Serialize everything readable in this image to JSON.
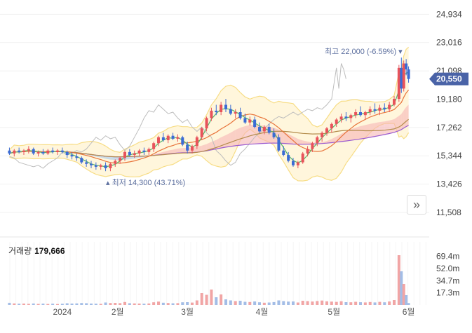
{
  "chart_data": {
    "type": "candlestick",
    "title": "",
    "price_axis": {
      "ticks": [
        "24,934",
        "23,016",
        "21,098",
        "19,180",
        "17,262",
        "15,344",
        "13,426",
        "11,508"
      ],
      "ylim": [
        10700,
        25900
      ]
    },
    "x_labels": [
      {
        "label": "2024",
        "day": 8
      },
      {
        "label": "2월",
        "day": 31
      },
      {
        "label": "3월",
        "day": 60
      },
      {
        "label": "4월",
        "day": 91
      },
      {
        "label": "5월",
        "day": 121
      },
      {
        "label": "6월",
        "day": 152
      }
    ],
    "day_range": [
      -15,
      160
    ],
    "current_price": {
      "label": "20,550",
      "value": 20550
    },
    "high_note": {
      "label": "최고",
      "value": "22,000 (-6.59%)",
      "day": 150,
      "price": 22000
    },
    "low_note": {
      "label": "최저",
      "value": "14,300 (43.71%)",
      "day": 27,
      "price": 14300
    },
    "candles": [
      [
        -14,
        15700,
        15900,
        15400,
        15500
      ],
      [
        -12,
        15500,
        15800,
        15300,
        15700
      ],
      [
        -10,
        15700,
        15900,
        15500,
        15600
      ],
      [
        -8,
        15600,
        15800,
        15400,
        15700
      ],
      [
        -6,
        15700,
        16000,
        15500,
        15800
      ],
      [
        -4,
        15800,
        15900,
        15400,
        15500
      ],
      [
        -2,
        15500,
        15700,
        15300,
        15600
      ],
      [
        0,
        15600,
        15800,
        15400,
        15500
      ],
      [
        2,
        15500,
        15800,
        15400,
        15700
      ],
      [
        4,
        15700,
        15900,
        15500,
        15600
      ],
      [
        6,
        15600,
        15800,
        15400,
        15700
      ],
      [
        8,
        15700,
        15900,
        15500,
        15600
      ],
      [
        10,
        15600,
        15700,
        15200,
        15400
      ],
      [
        12,
        15400,
        15600,
        15100,
        15300
      ],
      [
        14,
        15300,
        15500,
        15000,
        15200
      ],
      [
        16,
        15200,
        15300,
        14800,
        14900
      ],
      [
        18,
        14900,
        15100,
        14600,
        14800
      ],
      [
        20,
        14800,
        15000,
        14500,
        14700
      ],
      [
        22,
        14700,
        14900,
        14400,
        14600
      ],
      [
        24,
        14600,
        14800,
        14400,
        14700
      ],
      [
        26,
        14700,
        14900,
        14300,
        14500
      ],
      [
        28,
        14500,
        14900,
        14300,
        14800
      ],
      [
        30,
        14800,
        15100,
        14600,
        15000
      ],
      [
        32,
        15000,
        15300,
        14800,
        15200
      ],
      [
        34,
        15200,
        15700,
        15000,
        15600
      ],
      [
        36,
        15600,
        15800,
        15300,
        15400
      ],
      [
        38,
        15400,
        15700,
        15200,
        15500
      ],
      [
        40,
        15500,
        15800,
        15300,
        15700
      ],
      [
        42,
        15700,
        15900,
        15400,
        15600
      ],
      [
        44,
        15600,
        15900,
        15400,
        15800
      ],
      [
        46,
        15800,
        16300,
        15600,
        16200
      ],
      [
        48,
        16200,
        16700,
        16000,
        16600
      ],
      [
        50,
        16600,
        16900,
        16300,
        16400
      ],
      [
        52,
        16400,
        16800,
        16200,
        16700
      ],
      [
        54,
        16700,
        16900,
        16400,
        16500
      ],
      [
        56,
        16500,
        16800,
        16300,
        16600
      ],
      [
        58,
        16600,
        16700,
        16000,
        16100
      ],
      [
        60,
        16100,
        16300,
        15500,
        15700
      ],
      [
        62,
        15700,
        16100,
        15500,
        16000
      ],
      [
        64,
        16000,
        16700,
        15800,
        16600
      ],
      [
        66,
        16600,
        17300,
        16400,
        17200
      ],
      [
        68,
        17200,
        18000,
        17000,
        17900
      ],
      [
        70,
        17900,
        18600,
        17700,
        18400
      ],
      [
        72,
        18400,
        18800,
        18100,
        18300
      ],
      [
        74,
        18300,
        19000,
        18100,
        18800
      ],
      [
        76,
        18800,
        19200,
        18300,
        18500
      ],
      [
        78,
        18500,
        18800,
        18100,
        18200
      ],
      [
        80,
        18200,
        18500,
        17900,
        18300
      ],
      [
        82,
        18300,
        18600,
        17800,
        17900
      ],
      [
        84,
        17900,
        18200,
        17500,
        17600
      ],
      [
        86,
        17600,
        18000,
        17400,
        17800
      ],
      [
        88,
        17800,
        18000,
        17200,
        17300
      ],
      [
        90,
        17300,
        17600,
        16900,
        17000
      ],
      [
        92,
        17000,
        17400,
        16800,
        17300
      ],
      [
        94,
        17300,
        17500,
        16800,
        16900
      ],
      [
        96,
        16900,
        17200,
        16500,
        16600
      ],
      [
        98,
        16600,
        16800,
        15600,
        15700
      ],
      [
        100,
        15700,
        16000,
        15300,
        15400
      ],
      [
        102,
        15400,
        15600,
        14900,
        15000
      ],
      [
        104,
        15000,
        15200,
        14600,
        14700
      ],
      [
        106,
        14700,
        15000,
        14500,
        14900
      ],
      [
        108,
        14900,
        15600,
        14800,
        15500
      ],
      [
        110,
        15500,
        16000,
        15300,
        15800
      ],
      [
        112,
        15800,
        16300,
        15600,
        16200
      ],
      [
        114,
        16200,
        16700,
        16000,
        16600
      ],
      [
        116,
        16600,
        17000,
        16300,
        16900
      ],
      [
        118,
        16900,
        17300,
        16700,
        17200
      ],
      [
        120,
        17200,
        17600,
        16900,
        17500
      ],
      [
        122,
        17500,
        17900,
        17300,
        17800
      ],
      [
        124,
        17800,
        18200,
        17600,
        18000
      ],
      [
        126,
        18000,
        18300,
        17700,
        17900
      ],
      [
        128,
        17900,
        18200,
        17600,
        18100
      ],
      [
        130,
        18100,
        18500,
        17900,
        18300
      ],
      [
        132,
        18300,
        18700,
        18000,
        18100
      ],
      [
        134,
        18100,
        18400,
        17800,
        18300
      ],
      [
        136,
        18300,
        18700,
        18100,
        18500
      ],
      [
        138,
        18500,
        18900,
        18200,
        18400
      ],
      [
        140,
        18400,
        18800,
        18100,
        18600
      ],
      [
        142,
        18600,
        18900,
        18300,
        18500
      ],
      [
        144,
        18500,
        19000,
        18300,
        18800
      ],
      [
        146,
        18800,
        19400,
        18700,
        19200
      ],
      [
        148,
        19200,
        21500,
        19000,
        21300
      ],
      [
        149,
        21300,
        22000,
        19600,
        19900
      ],
      [
        150,
        19900,
        21800,
        19700,
        21600
      ],
      [
        151,
        21600,
        21900,
        20800,
        21200
      ],
      [
        152,
        21200,
        21400,
        20300,
        20550
      ]
    ],
    "volume_title": "거래량",
    "volume_value": "179,666",
    "volume_axis": {
      "ticks": [
        "69.4m",
        "52.0m",
        "34.7m",
        "17.3m"
      ],
      "ylim": [
        0,
        90
      ]
    },
    "volume": [
      [
        -14,
        3.1,
        "d"
      ],
      [
        -12,
        2.2,
        "u"
      ],
      [
        -10,
        1.8,
        "d"
      ],
      [
        -8,
        2.0,
        "u"
      ],
      [
        -6,
        1.6,
        "u"
      ],
      [
        -4,
        2.1,
        "d"
      ],
      [
        -2,
        1.5,
        "u"
      ],
      [
        0,
        1.9,
        "d"
      ],
      [
        2,
        1.4,
        "u"
      ],
      [
        4,
        1.8,
        "d"
      ],
      [
        6,
        1.3,
        "u"
      ],
      [
        8,
        1.7,
        "d"
      ],
      [
        10,
        2.4,
        "d"
      ],
      [
        12,
        2.0,
        "d"
      ],
      [
        14,
        2.2,
        "d"
      ],
      [
        16,
        2.8,
        "d"
      ],
      [
        18,
        2.5,
        "d"
      ],
      [
        20,
        2.0,
        "d"
      ],
      [
        22,
        1.8,
        "d"
      ],
      [
        24,
        1.6,
        "u"
      ],
      [
        26,
        3.5,
        "d"
      ],
      [
        28,
        2.8,
        "u"
      ],
      [
        30,
        3.0,
        "u"
      ],
      [
        32,
        2.6,
        "u"
      ],
      [
        34,
        4.2,
        "u"
      ],
      [
        36,
        2.5,
        "d"
      ],
      [
        38,
        2.2,
        "u"
      ],
      [
        40,
        2.0,
        "u"
      ],
      [
        42,
        1.8,
        "d"
      ],
      [
        44,
        2.1,
        "u"
      ],
      [
        46,
        3.8,
        "u"
      ],
      [
        48,
        4.8,
        "u"
      ],
      [
        50,
        3.2,
        "d"
      ],
      [
        52,
        2.8,
        "u"
      ],
      [
        54,
        2.4,
        "d"
      ],
      [
        56,
        2.6,
        "u"
      ],
      [
        58,
        3.8,
        "d"
      ],
      [
        60,
        4.0,
        "d"
      ],
      [
        62,
        3.4,
        "u"
      ],
      [
        64,
        6.5,
        "u"
      ],
      [
        66,
        17.0,
        "u"
      ],
      [
        68,
        14.5,
        "u"
      ],
      [
        70,
        22.0,
        "u"
      ],
      [
        72,
        11.0,
        "d"
      ],
      [
        74,
        15.0,
        "u"
      ],
      [
        76,
        8.0,
        "d"
      ],
      [
        78,
        6.5,
        "d"
      ],
      [
        80,
        5.5,
        "u"
      ],
      [
        82,
        6.0,
        "d"
      ],
      [
        84,
        4.5,
        "d"
      ],
      [
        86,
        4.2,
        "u"
      ],
      [
        88,
        5.0,
        "d"
      ],
      [
        90,
        3.8,
        "d"
      ],
      [
        92,
        3.2,
        "u"
      ],
      [
        94,
        3.5,
        "d"
      ],
      [
        96,
        4.1,
        "d"
      ],
      [
        98,
        6.5,
        "d"
      ],
      [
        100,
        5.5,
        "d"
      ],
      [
        102,
        4.8,
        "d"
      ],
      [
        104,
        5.0,
        "d"
      ],
      [
        106,
        3.5,
        "u"
      ],
      [
        108,
        6.0,
        "u"
      ],
      [
        110,
        5.5,
        "u"
      ],
      [
        112,
        4.9,
        "u"
      ],
      [
        114,
        5.6,
        "u"
      ],
      [
        116,
        6.3,
        "u"
      ],
      [
        118,
        5.2,
        "u"
      ],
      [
        120,
        4.8,
        "u"
      ],
      [
        122,
        4.4,
        "u"
      ],
      [
        124,
        5.3,
        "u"
      ],
      [
        126,
        4.0,
        "d"
      ],
      [
        128,
        3.8,
        "u"
      ],
      [
        130,
        4.5,
        "u"
      ],
      [
        132,
        3.9,
        "d"
      ],
      [
        134,
        3.6,
        "u"
      ],
      [
        136,
        4.2,
        "u"
      ],
      [
        138,
        3.6,
        "d"
      ],
      [
        140,
        4.4,
        "u"
      ],
      [
        142,
        3.8,
        "d"
      ],
      [
        144,
        5.0,
        "u"
      ],
      [
        146,
        7.0,
        "u"
      ],
      [
        148,
        71.0,
        "u"
      ],
      [
        149,
        48.0,
        "d"
      ],
      [
        150,
        30.0,
        "u"
      ],
      [
        151,
        14.0,
        "d"
      ],
      [
        152,
        2.8,
        "d"
      ]
    ],
    "colors": {
      "up": "#e8535a",
      "down": "#3b6bd4",
      "band_fill": "#fff6dc",
      "band_edge": "#f7dd86",
      "cloud_bull": "#f6b5b5",
      "cloud_bear": "#a9c9ee",
      "ma5": "#57b46a",
      "ma20": "#e8743b",
      "ma60": "#b48c4c",
      "ma120": "#9b5bd0",
      "lagging": "#bdbdbd",
      "badge": "#4a63a7",
      "note": "#5b6e9e",
      "grid": "#f1f1f1",
      "vol_up": "#f1a5a5",
      "vol_down": "#a3bde6"
    }
  }
}
